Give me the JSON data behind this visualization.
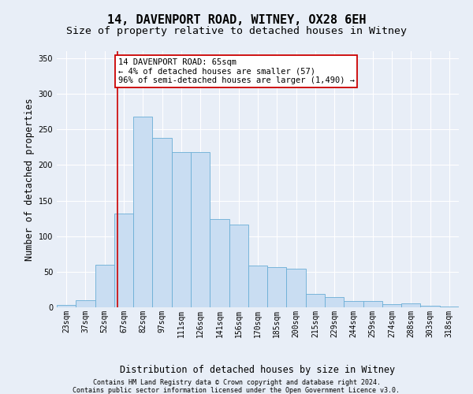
{
  "title_line1": "14, DAVENPORT ROAD, WITNEY, OX28 6EH",
  "title_line2": "Size of property relative to detached houses in Witney",
  "xlabel": "Distribution of detached houses by size in Witney",
  "ylabel": "Number of detached properties",
  "categories": [
    "23sqm",
    "37sqm",
    "52sqm",
    "67sqm",
    "82sqm",
    "97sqm",
    "111sqm",
    "126sqm",
    "141sqm",
    "156sqm",
    "170sqm",
    "185sqm",
    "200sqm",
    "215sqm",
    "229sqm",
    "244sqm",
    "259sqm",
    "274sqm",
    "288sqm",
    "303sqm",
    "318sqm"
  ],
  "values": [
    3,
    10,
    60,
    132,
    268,
    238,
    218,
    218,
    124,
    116,
    59,
    56,
    54,
    19,
    14,
    9,
    9,
    4,
    5,
    2,
    1
  ],
  "bar_color": "#c9ddf2",
  "bar_edge_color": "#6aaed6",
  "vline_x_data": 2.65,
  "annotation_text_line1": "14 DAVENPORT ROAD: 65sqm",
  "annotation_text_line2": "← 4% of detached houses are smaller (57)",
  "annotation_text_line3": "96% of semi-detached houses are larger (1,490) →",
  "annotation_box_color": "#ffffff",
  "annotation_box_edge_color": "#cc0000",
  "vline_color": "#cc0000",
  "footer_line1": "Contains HM Land Registry data © Crown copyright and database right 2024.",
  "footer_line2": "Contains public sector information licensed under the Open Government Licence v3.0.",
  "ylim": [
    0,
    360
  ],
  "yticks": [
    0,
    50,
    100,
    150,
    200,
    250,
    300,
    350
  ],
  "background_color": "#e8eef7",
  "grid_color": "#ffffff",
  "title_fontsize": 11,
  "subtitle_fontsize": 9.5,
  "ylabel_fontsize": 8.5,
  "xlabel_fontsize": 8.5,
  "tick_fontsize": 7,
  "annotation_fontsize": 7.5,
  "footer_fontsize": 6
}
